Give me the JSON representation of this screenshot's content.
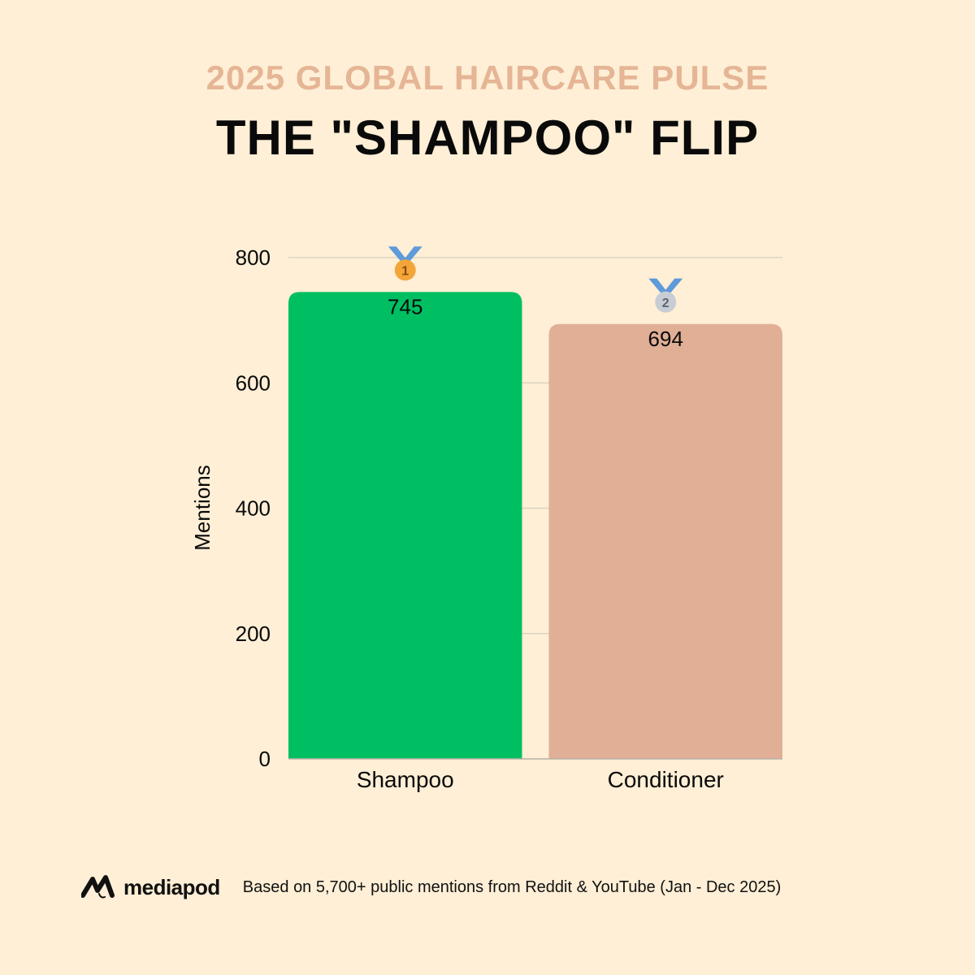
{
  "header": {
    "kicker": "2025 GLOBAL HAIRCARE PULSE",
    "title": "THE \"SHAMPOO\" FLIP"
  },
  "chart_data": {
    "type": "bar",
    "categories": [
      "Shampoo",
      "Conditioner"
    ],
    "values": [
      745,
      694
    ],
    "rank_badges": [
      "1",
      "2"
    ],
    "bar_colors": [
      "#00BF63",
      "#E0AF95"
    ],
    "badge_colors": [
      "#F4A53A",
      "#C8CDD3"
    ],
    "ribbon_color": "#5E9BDA",
    "xlabel": "",
    "ylabel": "Mentions",
    "ylim": [
      0,
      800
    ],
    "yticks": [
      0,
      200,
      400,
      600,
      800
    ],
    "grid": true,
    "legend": "none"
  },
  "footer": {
    "brand": "mediapod",
    "brand_icon": "mediapod-logo-icon",
    "source_note": "Based on 5,700+ public mentions from Reddit & YouTube (Jan - Dec 2025)"
  },
  "colors": {
    "background": "#FEEFD6",
    "kicker": "#E5B595",
    "text": "#0A0A0A",
    "gridline": "#DDD3C3"
  }
}
